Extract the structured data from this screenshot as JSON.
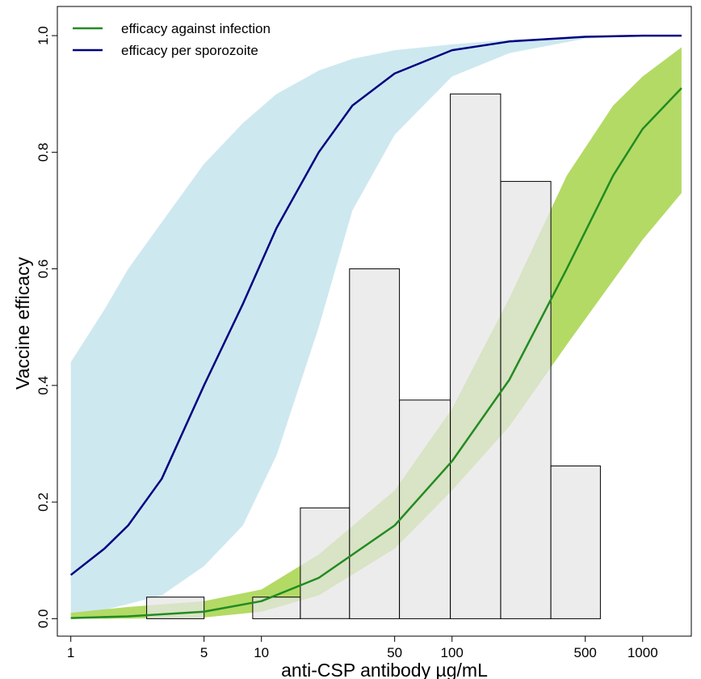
{
  "chart_data": {
    "type": "line",
    "xlabel": "anti-CSP antibody  µg/mL",
    "ylabel": "Vaccine efficacy",
    "x_scale": "log10",
    "xlim": [
      0.85,
      1800
    ],
    "ylim": [
      -0.03,
      1.05
    ],
    "x_ticks": [
      1,
      5,
      10,
      50,
      100,
      500,
      1000
    ],
    "x_tick_labels": [
      "1",
      "5",
      "10",
      "50",
      "100",
      "500",
      "1000"
    ],
    "y_ticks": [
      0.0,
      0.2,
      0.4,
      0.6,
      0.8,
      1.0
    ],
    "y_tick_labels": [
      "0.0",
      "0.2",
      "0.4",
      "0.6",
      "0.8",
      "1.0"
    ],
    "grid": false,
    "legend_position": "top-left",
    "legend": [
      {
        "label": "efficacy against infection",
        "color": "#228b22"
      },
      {
        "label": "efficacy per sporozoite",
        "color": "#000080"
      }
    ],
    "series": [
      {
        "name": "efficacy against infection",
        "color": "#228b22",
        "band_color": "#9acd32",
        "x": [
          1,
          2,
          5,
          10,
          20,
          50,
          100,
          200,
          400,
          700,
          1000,
          1600
        ],
        "y": [
          0.001,
          0.004,
          0.012,
          0.03,
          0.07,
          0.16,
          0.27,
          0.41,
          0.6,
          0.76,
          0.84,
          0.91
        ],
        "lower": [
          0.0,
          0.0,
          0.002,
          0.012,
          0.04,
          0.12,
          0.22,
          0.33,
          0.47,
          0.58,
          0.65,
          0.73
        ],
        "upper": [
          0.01,
          0.02,
          0.03,
          0.05,
          0.11,
          0.22,
          0.36,
          0.55,
          0.76,
          0.88,
          0.93,
          0.98
        ]
      },
      {
        "name": "efficacy per sporozoite",
        "color": "#000080",
        "band_color": "#add8e6",
        "x": [
          1,
          1.5,
          2,
          3,
          5,
          8,
          12,
          20,
          30,
          50,
          100,
          200,
          500,
          1000,
          1600
        ],
        "y": [
          0.075,
          0.12,
          0.16,
          0.24,
          0.4,
          0.54,
          0.67,
          0.8,
          0.88,
          0.935,
          0.975,
          0.99,
          0.998,
          1.0,
          1.0
        ],
        "lower": [
          0.01,
          0.015,
          0.025,
          0.04,
          0.09,
          0.16,
          0.28,
          0.5,
          0.7,
          0.83,
          0.93,
          0.97,
          0.995,
          0.999,
          1.0
        ],
        "upper": [
          0.44,
          0.53,
          0.6,
          0.68,
          0.78,
          0.85,
          0.9,
          0.94,
          0.96,
          0.975,
          0.985,
          0.993,
          0.998,
          1.0,
          1.0
        ]
      }
    ],
    "histogram": {
      "color": "#e5e5e5",
      "edge_color": "#000000",
      "bins": [
        {
          "x0": 2.5,
          "x1": 5,
          "height": 0.037
        },
        {
          "x0": 5,
          "x1": 9,
          "height": 0.0
        },
        {
          "x0": 9,
          "x1": 16,
          "height": 0.037
        },
        {
          "x0": 16,
          "x1": 29,
          "height": 0.19
        },
        {
          "x0": 29,
          "x1": 53,
          "height": 0.6
        },
        {
          "x0": 53,
          "x1": 98,
          "height": 0.375
        },
        {
          "x0": 98,
          "x1": 180,
          "height": 0.9
        },
        {
          "x0": 180,
          "x1": 330,
          "height": 0.75
        },
        {
          "x0": 330,
          "x1": 600,
          "height": 0.262
        },
        {
          "x0": 600,
          "x1": 1100,
          "height": 0.0
        }
      ]
    }
  }
}
